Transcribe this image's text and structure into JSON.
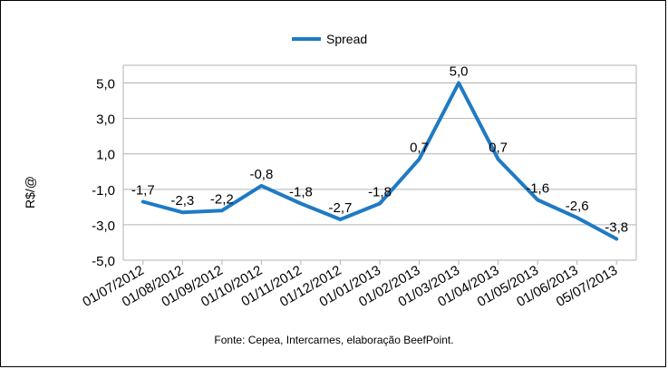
{
  "chart_data": {
    "type": "line",
    "title": "",
    "xlabel": "",
    "ylabel": "R$/@",
    "categories": [
      "01/07/2012",
      "01/08/2012",
      "01/09/2012",
      "01/10/2012",
      "01/11/2012",
      "01/12/2012",
      "01/01/2013",
      "01/02/2013",
      "01/03/2013",
      "01/04/2013",
      "01/05/2013",
      "01/06/2013",
      "05/07/2013"
    ],
    "series": [
      {
        "name": "Spread",
        "values": [
          -1.7,
          -2.3,
          -2.2,
          -0.8,
          -1.8,
          -2.7,
          -1.8,
          0.7,
          5.0,
          0.7,
          -1.6,
          -2.6,
          -3.8
        ],
        "labels": [
          "-1,7",
          "-2,3",
          "-2,2",
          "-0,8",
          "-1,8",
          "-2,7",
          "-1,8",
          "0,7",
          "5,0",
          "0,7",
          "-1,6",
          "-2,6",
          "-3,8"
        ],
        "color": "#1f7ac4"
      }
    ],
    "ylim": [
      -5.0,
      6.0
    ],
    "yticks": [
      -5.0,
      -3.0,
      -1.0,
      1.0,
      3.0,
      5.0
    ],
    "ytick_labels": [
      "-5,0",
      "-3,0",
      "-1,0",
      "1,0",
      "3,0",
      "5,0"
    ],
    "grid": true,
    "legend": "top"
  },
  "source_note": "Fonte: Cepea, Intercarnes, elaboração BeefPoint."
}
